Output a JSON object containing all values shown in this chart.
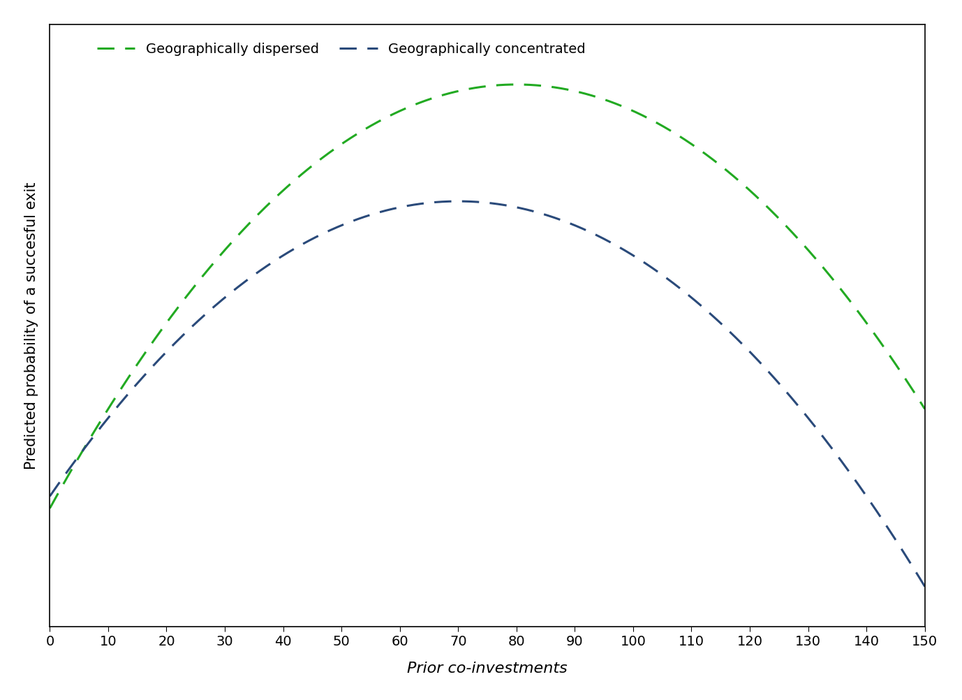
{
  "dispersed_color": "#22aa22",
  "concentrated_color": "#2a4a7a",
  "x_min": 0,
  "x_max": 150,
  "x_ticks": [
    0,
    10,
    20,
    30,
    40,
    50,
    60,
    70,
    80,
    90,
    100,
    110,
    120,
    130,
    140,
    150
  ],
  "xlabel": "Prior co-investments",
  "ylabel": "Predicted probability of a succesful exit",
  "legend_dispersed": "Geographically dispersed",
  "legend_concentrated": "Geographically concentrated",
  "line_width": 2.2,
  "dash_on": 8,
  "dash_off": 5,
  "background_color": "#ffffff",
  "axes_color": "#000000",
  "dispersed_a": -0.0011,
  "dispersed_b": 0.176,
  "dispersed_c": 0.1,
  "concentrated_a": -0.001,
  "concentrated_b": 0.14,
  "concentrated_c": 0.3,
  "figsize": [
    13.78,
    10.02
  ],
  "dpi": 100
}
